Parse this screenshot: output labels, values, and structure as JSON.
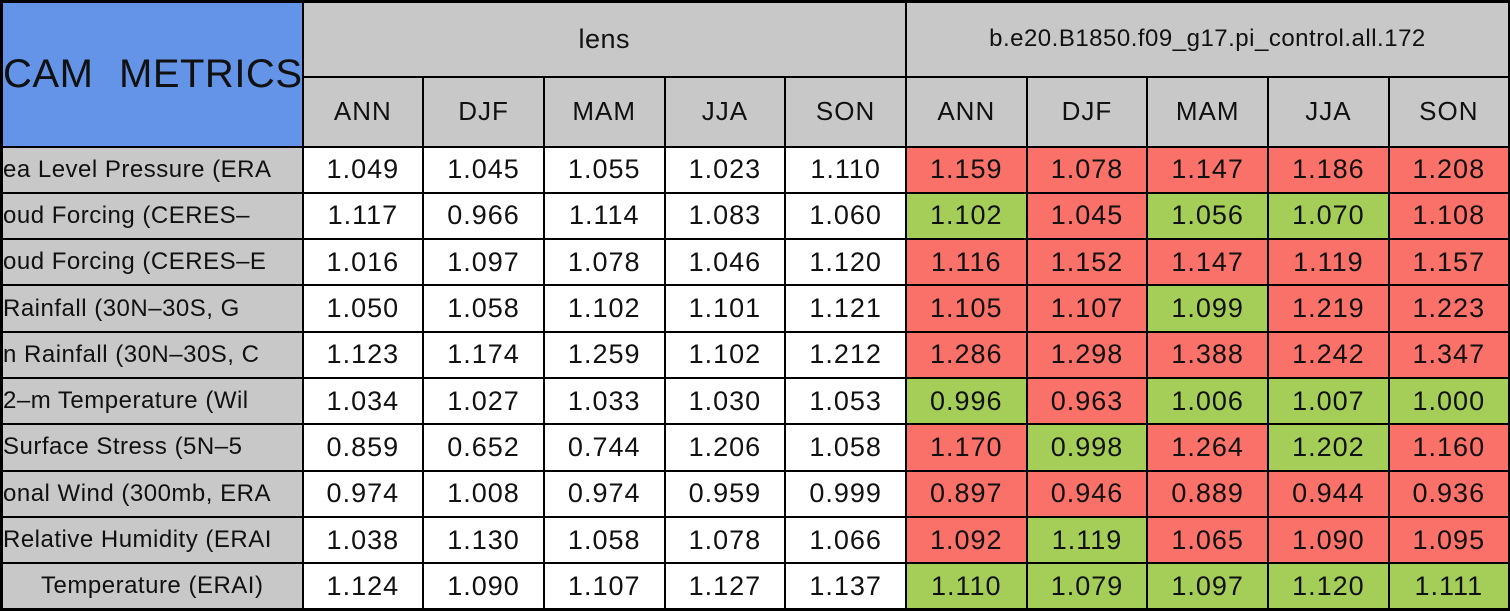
{
  "colors": {
    "title_bg": "#6494E8",
    "header_bg": "#C8C8C8",
    "worse_red": "#F97168",
    "better_green": "#A5CE58",
    "border": "#000000",
    "lens_cell_bg": "#FFFFFF"
  },
  "chart_data": {
    "type": "table",
    "title": "CAM METRICS",
    "column_groups": [
      "lens",
      "b.e20.B1850.f09_g17.pi_control.all.172"
    ],
    "seasons": [
      "ANN",
      "DJF",
      "MAM",
      "JJA",
      "SON"
    ],
    "rows": [
      {
        "label": "ea Level Pressure (ERA",
        "lens": [
          "1.049",
          "1.045",
          "1.055",
          "1.023",
          "1.110"
        ],
        "control": [
          "1.159",
          "1.078",
          "1.147",
          "1.186",
          "1.208"
        ],
        "control_status": [
          "red",
          "red",
          "red",
          "red",
          "red"
        ]
      },
      {
        "label": "oud Forcing (CERES–",
        "lens": [
          "1.117",
          "0.966",
          "1.114",
          "1.083",
          "1.060"
        ],
        "control": [
          "1.102",
          "1.045",
          "1.056",
          "1.070",
          "1.108"
        ],
        "control_status": [
          "green",
          "red",
          "green",
          "green",
          "red"
        ]
      },
      {
        "label": "oud Forcing (CERES–E",
        "lens": [
          "1.016",
          "1.097",
          "1.078",
          "1.046",
          "1.120"
        ],
        "control": [
          "1.116",
          "1.152",
          "1.147",
          "1.119",
          "1.157"
        ],
        "control_status": [
          "red",
          "red",
          "red",
          "red",
          "red"
        ]
      },
      {
        "label": "Rainfall (30N–30S, G",
        "lens": [
          "1.050",
          "1.058",
          "1.102",
          "1.101",
          "1.121"
        ],
        "control": [
          "1.105",
          "1.107",
          "1.099",
          "1.219",
          "1.223"
        ],
        "control_status": [
          "red",
          "red",
          "green",
          "red",
          "red"
        ]
      },
      {
        "label": "n Rainfall (30N–30S, C",
        "lens": [
          "1.123",
          "1.174",
          "1.259",
          "1.102",
          "1.212"
        ],
        "control": [
          "1.286",
          "1.298",
          "1.388",
          "1.242",
          "1.347"
        ],
        "control_status": [
          "red",
          "red",
          "red",
          "red",
          "red"
        ]
      },
      {
        "label": "2–m Temperature (Wil",
        "lens": [
          "1.034",
          "1.027",
          "1.033",
          "1.030",
          "1.053"
        ],
        "control": [
          "0.996",
          "0.963",
          "1.006",
          "1.007",
          "1.000"
        ],
        "control_status": [
          "green",
          "red",
          "green",
          "green",
          "green"
        ]
      },
      {
        "label": "Surface Stress (5N–5",
        "lens": [
          "0.859",
          "0.652",
          "0.744",
          "1.206",
          "1.058"
        ],
        "control": [
          "1.170",
          "0.998",
          "1.264",
          "1.202",
          "1.160"
        ],
        "control_status": [
          "red",
          "green",
          "red",
          "green",
          "red"
        ]
      },
      {
        "label": "onal Wind (300mb, ERA",
        "lens": [
          "0.974",
          "1.008",
          "0.974",
          "0.959",
          "0.999"
        ],
        "control": [
          "0.897",
          "0.946",
          "0.889",
          "0.944",
          "0.936"
        ],
        "control_status": [
          "red",
          "red",
          "red",
          "red",
          "red"
        ]
      },
      {
        "label": "Relative Humidity (ERAI",
        "lens": [
          "1.038",
          "1.130",
          "1.058",
          "1.078",
          "1.066"
        ],
        "control": [
          "1.092",
          "1.119",
          "1.065",
          "1.090",
          "1.095"
        ],
        "control_status": [
          "red",
          "green",
          "red",
          "red",
          "red"
        ]
      },
      {
        "label": "Temperature (ERAI)",
        "lens": [
          "1.124",
          "1.090",
          "1.107",
          "1.127",
          "1.137"
        ],
        "control": [
          "1.110",
          "1.079",
          "1.097",
          "1.120",
          "1.111"
        ],
        "control_status": [
          "green",
          "green",
          "green",
          "green",
          "green"
        ]
      }
    ]
  }
}
